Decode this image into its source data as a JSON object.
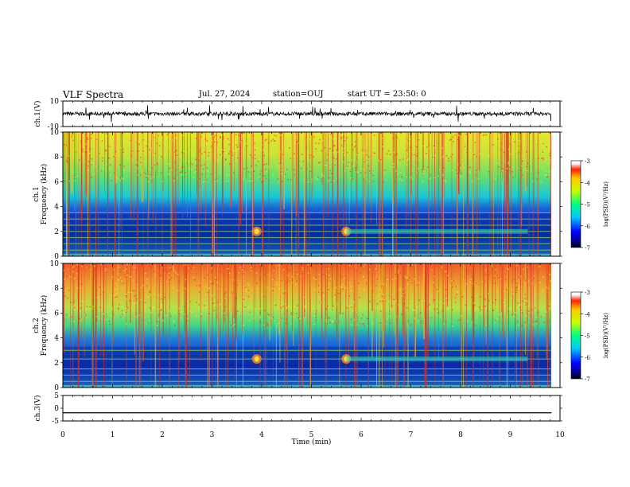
{
  "header": {
    "title": "VLF Spectra",
    "date": "Jul. 27, 2024",
    "station": "station=OUJ",
    "start": "start UT = 23:50: 0"
  },
  "chart_data": [
    {
      "type": "line",
      "panel": "waveform-ch1",
      "ylabel": "ch.1(V)",
      "ylim": [
        -10,
        10
      ],
      "ytick_labels": [
        "10",
        "-10"
      ],
      "x": [
        0,
        9.83
      ],
      "y_baseline": 0,
      "note": "dense noisy waveform, amplitude roughly +/-2 V with spikes"
    },
    {
      "type": "heatmap",
      "panel": "spectrogram-ch1",
      "ylabel": "ch.1 Frequency (kHz)",
      "ylim": [
        0,
        10
      ],
      "ytick_labels": [
        "0",
        "2",
        "4",
        "6",
        "8",
        "10"
      ],
      "colorbar": {
        "label": "log(PSD)(V²/Hz)",
        "range": [
          -7,
          -3
        ],
        "tick_labels": [
          "-3",
          "-4",
          "-5",
          "-6",
          "-7"
        ]
      },
      "features": {
        "low_band_kHz": [
          0.2,
          3.5
        ],
        "tone_lines_kHz": [
          0.5,
          1.0,
          1.5,
          2.0,
          2.5,
          3.0,
          3.5
        ],
        "burst_times_min": [
          3.9,
          5.7
        ],
        "emission_kHz": 2.0
      }
    },
    {
      "type": "heatmap",
      "panel": "spectrogram-ch2",
      "ylabel": "ch.2 Frequency (kHz)",
      "ylim": [
        0,
        10
      ],
      "ytick_labels": [
        "0",
        "2",
        "4",
        "6",
        "8",
        "10"
      ],
      "colorbar": {
        "label": "log(PSD)(V²/Hz)",
        "range": [
          -7,
          -3
        ],
        "tick_labels": [
          "-3",
          "-4",
          "-5",
          "-6",
          "-7"
        ]
      },
      "features": {
        "low_band_kHz": [
          0.2,
          3.3
        ],
        "tone_lines_kHz": [
          0.5,
          1.0,
          1.5,
          2.3,
          3.0
        ],
        "burst_times_min": [
          3.9,
          5.7
        ],
        "emission_kHz": 2.3
      }
    },
    {
      "type": "line",
      "panel": "waveform-ch3",
      "ylabel": "ch.3(V)",
      "ylim": [
        -5,
        5
      ],
      "ytick_labels": [
        "5",
        "0",
        "-5"
      ],
      "x": [
        0,
        9.83
      ],
      "y": [
        -1.8,
        -1.8
      ]
    }
  ],
  "xaxis": {
    "label": "Time (min)",
    "xlim": [
      0,
      10
    ],
    "tick_labels": [
      "0",
      "1",
      "2",
      "3",
      "4",
      "5",
      "6",
      "7",
      "8",
      "9",
      "10"
    ],
    "data_end": 9.83
  }
}
